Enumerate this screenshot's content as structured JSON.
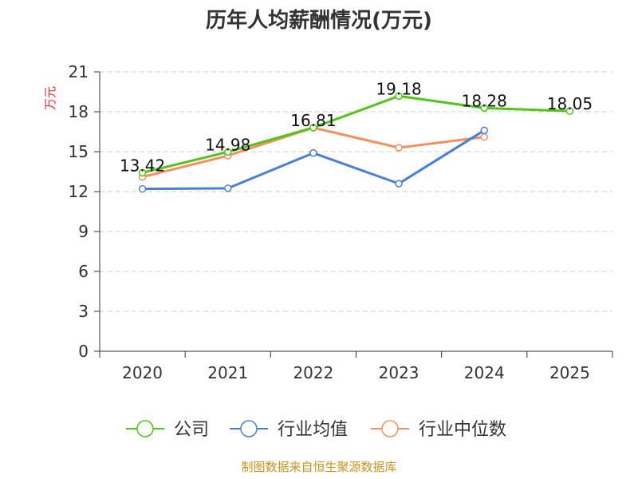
{
  "chart_data": {
    "type": "line",
    "title": "历年人均薪酬情况(万元)",
    "ylabel": "万元",
    "xlabel": "",
    "categories": [
      "2020",
      "2021",
      "2022",
      "2023",
      "2024",
      "2025"
    ],
    "ylim": [
      0,
      21
    ],
    "yticks": [
      "0",
      "3",
      "6",
      "9",
      "12",
      "15",
      "18",
      "21"
    ],
    "grid": true,
    "legend_position": "bottom",
    "series": [
      {
        "name": "公司",
        "color": "#52c41a",
        "values": [
          13.42,
          14.98,
          16.81,
          19.18,
          18.28,
          18.05
        ],
        "labels": [
          "13.42",
          "14.98",
          "16.81",
          "19.18",
          "18.28",
          "18.05"
        ]
      },
      {
        "name": "行业均值",
        "color": "#4a7fd8",
        "values": [
          12.2,
          12.25,
          14.9,
          12.6,
          16.6,
          null
        ],
        "labels": []
      },
      {
        "name": "行业中位数",
        "color": "#f49060",
        "values": [
          13.1,
          14.7,
          16.8,
          15.3,
          16.1,
          null
        ],
        "labels": []
      }
    ]
  },
  "source": "制图数据来自恒生聚源数据库",
  "colors": {
    "ylabel": "#e03030",
    "source": "#c8941e",
    "axis": "#333333",
    "grid": "#cccccc"
  }
}
